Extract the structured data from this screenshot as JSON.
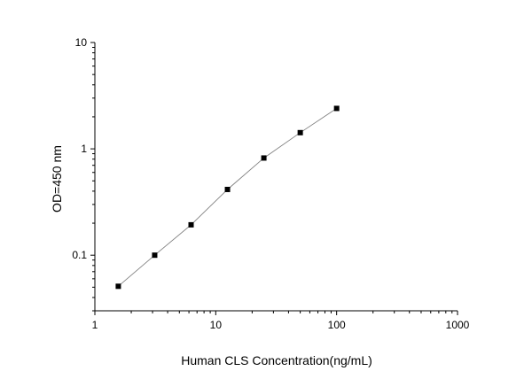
{
  "chart_data": {
    "type": "scatter",
    "x_scale": "log",
    "y_scale": "log",
    "xlabel": "Human CLS Concentration(ng/mL)",
    "ylabel": "OD=450 nm",
    "xlim": [
      1,
      1000
    ],
    "ylim": [
      0.03,
      10
    ],
    "x_ticks": [
      {
        "value": 1,
        "label": "1"
      },
      {
        "value": 10,
        "label": "10"
      },
      {
        "value": 100,
        "label": "100"
      },
      {
        "value": 1000,
        "label": "1000"
      }
    ],
    "y_ticks": [
      {
        "value": 0.1,
        "label": "0.1"
      },
      {
        "value": 1,
        "label": "1"
      },
      {
        "value": 10,
        "label": "10"
      }
    ],
    "grid": false,
    "connected_line": true,
    "series": [
      {
        "x": [
          1.5625,
          3.125,
          6.25,
          12.5,
          25,
          50,
          100
        ],
        "y": [
          0.051,
          0.1,
          0.193,
          0.415,
          0.82,
          1.42,
          2.4
        ]
      }
    ],
    "colors": {
      "marker": "#000000",
      "line": "#808080",
      "axis": "#000000"
    }
  }
}
